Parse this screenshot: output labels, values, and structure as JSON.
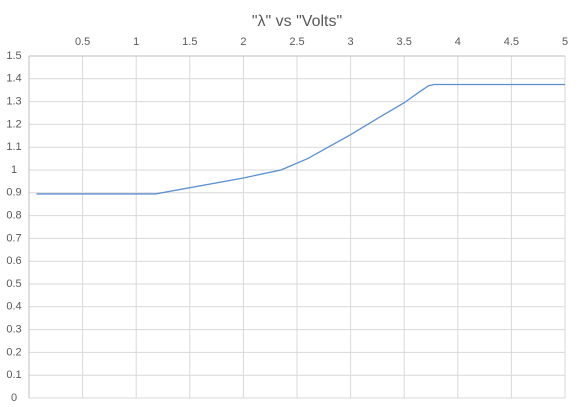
{
  "chart_data": {
    "type": "line",
    "title": "\"λ\" vs \"Volts\"",
    "x": [
      0.07,
      1.18,
      2,
      2.35,
      2.6,
      3,
      3.3,
      3.5,
      3.65,
      3.73,
      3.78,
      5
    ],
    "series": [
      {
        "color": "#5b8fcf",
        "values": [
          0.895,
          0.895,
          0.965,
          1.0,
          1.05,
          1.155,
          1.24,
          1.295,
          1.345,
          1.37,
          1.375,
          1.375
        ]
      }
    ],
    "xlim": [
      0,
      5
    ],
    "xticks": [
      0.5,
      1,
      1.5,
      2,
      2.5,
      3,
      3.5,
      4,
      4.5,
      5
    ],
    "ylim": [
      0,
      1.5
    ],
    "yticks": [
      0,
      0.1,
      0.2,
      0.3,
      0.4,
      0.5,
      0.6,
      0.7,
      0.8,
      0.9,
      1,
      1.1,
      1.2,
      1.3,
      1.4,
      1.5
    ],
    "grid": true,
    "x_axis_position": "top"
  }
}
